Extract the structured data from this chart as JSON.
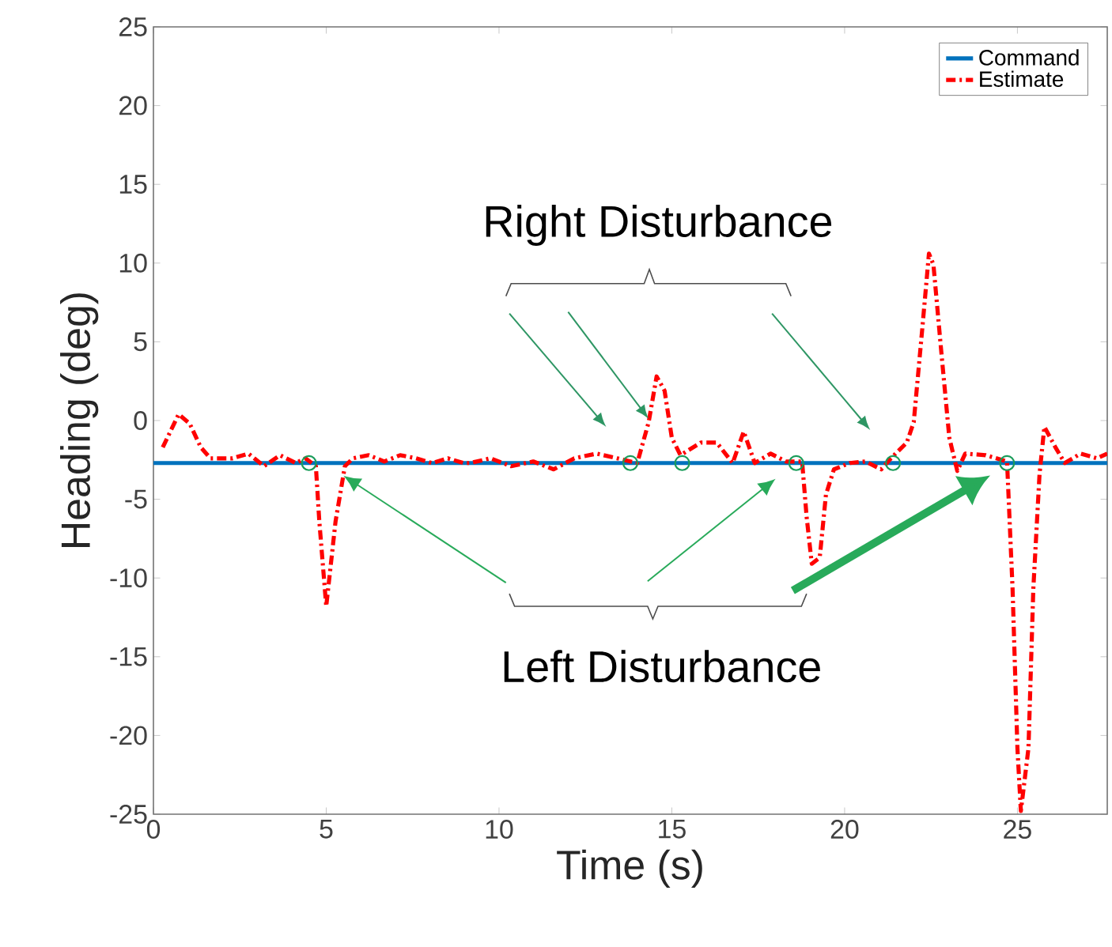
{
  "chart_data": {
    "type": "line",
    "xlabel": "Time (s)",
    "ylabel": "Heading (deg)",
    "xlim": [
      0,
      27.6
    ],
    "ylim": [
      -25,
      25
    ],
    "xticks": [
      0,
      5,
      10,
      15,
      20,
      25
    ],
    "yticks": [
      -25,
      -20,
      -15,
      -10,
      -5,
      0,
      5,
      10,
      15,
      20,
      25
    ],
    "legend": "top right",
    "grid": false,
    "annotations": [
      "Right Disturbance",
      "Left Disturbance"
    ],
    "series": [
      {
        "name": "Command",
        "color": "#0072bd",
        "line_style": "solid",
        "x": [
          0,
          27.6
        ],
        "values": [
          -2.7,
          -2.7
        ]
      },
      {
        "name": "Estimate",
        "color": "#ff0000",
        "line_style": "dashdot",
        "x": [
          0.27,
          0.73,
          1.05,
          1.37,
          1.65,
          2.29,
          2.75,
          3.2,
          3.66,
          4.12,
          4.4,
          4.7,
          4.8,
          5.0,
          5.27,
          5.54,
          5.77,
          6.23,
          6.68,
          7.14,
          7.6,
          8.06,
          8.52,
          8.97,
          9.16,
          9.75,
          10.35,
          10.99,
          11.58,
          12.18,
          12.82,
          13.42,
          14.0,
          14.33,
          14.56,
          14.79,
          15.0,
          15.25,
          15.84,
          16.3,
          16.76,
          17.08,
          17.4,
          17.86,
          18.3,
          18.77,
          18.9,
          19.05,
          19.28,
          19.46,
          19.69,
          20.15,
          20.6,
          21.06,
          21.34,
          21.8,
          22.0,
          22.25,
          22.44,
          22.57,
          22.8,
          23.03,
          23.26,
          23.49,
          24.08,
          24.7,
          24.86,
          25.0,
          25.1,
          25.32,
          25.46,
          25.64,
          25.78,
          26.1,
          26.37,
          26.83,
          27.3,
          27.6
        ],
        "values": [
          -1.7,
          0.4,
          -0.2,
          -1.7,
          -2.4,
          -2.4,
          -2.1,
          -2.9,
          -2.2,
          -2.7,
          -2.4,
          -2.9,
          -6.4,
          -11.8,
          -6.4,
          -2.9,
          -2.4,
          -2.2,
          -2.6,
          -2.2,
          -2.4,
          -2.7,
          -2.4,
          -2.7,
          -2.7,
          -2.4,
          -2.9,
          -2.6,
          -3.1,
          -2.4,
          -2.1,
          -2.4,
          -2.7,
          -0.1,
          2.8,
          1.9,
          -1.1,
          -2.2,
          -1.4,
          -1.4,
          -2.7,
          -0.7,
          -2.7,
          -2.1,
          -2.6,
          -2.6,
          -6.1,
          -9.1,
          -8.7,
          -4.7,
          -3.1,
          -2.7,
          -2.6,
          -3.1,
          -2.4,
          -1.4,
          -0.1,
          5.9,
          10.6,
          9.9,
          4.3,
          -1.1,
          -3.2,
          -2.1,
          -2.2,
          -2.6,
          -10.7,
          -20.8,
          -24.8,
          -20.8,
          -10.7,
          -3.4,
          -0.4,
          -1.7,
          -2.7,
          -2.1,
          -2.4,
          -2.1
        ]
      },
      {
        "type": "scatter",
        "color": "#1a9c5a",
        "marker": "circle",
        "x": [
          4.5,
          13.8,
          15.3,
          18.6,
          21.4,
          24.7
        ],
        "values": [
          -2.7,
          -2.7,
          -2.7,
          -2.7,
          -2.7,
          -2.7
        ]
      }
    ]
  }
}
